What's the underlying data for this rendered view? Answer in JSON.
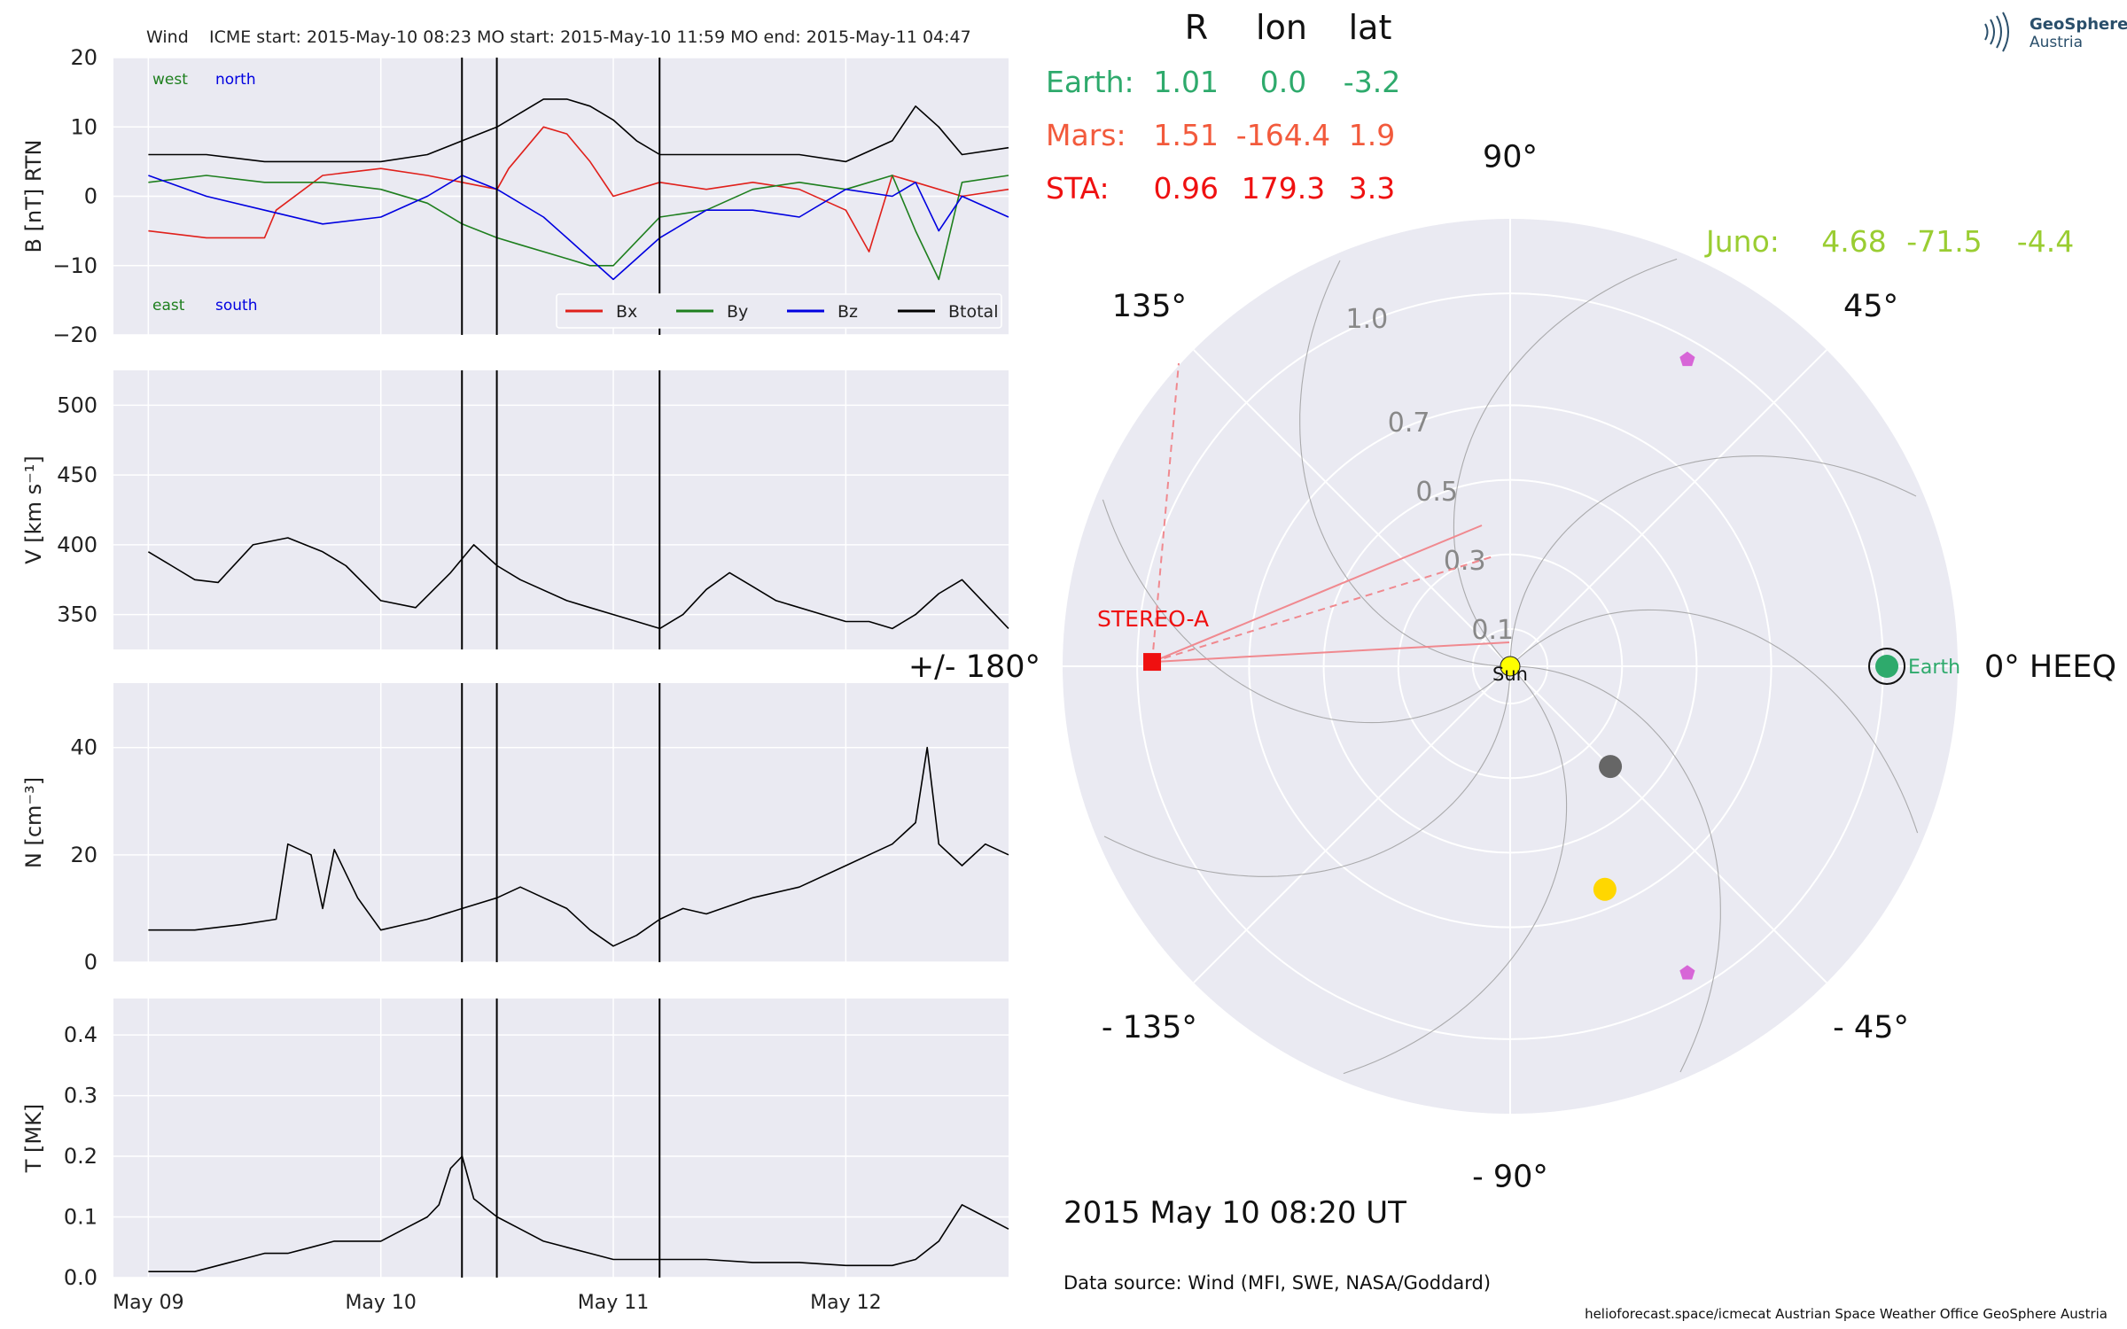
{
  "chart_data": [
    {
      "type": "line",
      "panel": "magnetic-field",
      "instrument": "Wind",
      "title": "ICME start: 2015-May-10 08:23   MO start: 2015-May-10 11:59   MO end: 2015-May-11 04:47",
      "ylabel": "B [nT] RTN",
      "ylim": [
        -20,
        20
      ],
      "yticks": [
        "20",
        "10",
        "0",
        "−10",
        "−20"
      ],
      "xlim": [
        -0.15,
        3.7
      ],
      "xtick_labels": [
        "May 09",
        "May 10",
        "May 11",
        "May 12"
      ],
      "grid": true,
      "legend_placement": "lower right",
      "annotations": {
        "west": "west",
        "north": "north",
        "east": "east",
        "south": "south"
      },
      "event_lines_days": [
        1.349,
        1.499,
        2.199
      ],
      "series": [
        {
          "name": "Bx",
          "color": "#e0201b",
          "x": [
            0,
            0.25,
            0.5,
            0.55,
            0.75,
            1.0,
            1.2,
            1.35,
            1.5,
            1.55,
            1.7,
            1.8,
            1.9,
            2.0,
            2.2,
            2.4,
            2.6,
            2.8,
            3.0,
            3.1,
            3.2,
            3.3,
            3.5,
            3.7
          ],
          "y": [
            -5,
            -6,
            -6,
            -2,
            3,
            4,
            3,
            2,
            1,
            4,
            10,
            9,
            5,
            0,
            2,
            1,
            2,
            1,
            -2,
            -8,
            3,
            2,
            0,
            1
          ]
        },
        {
          "name": "By",
          "color": "#1e7f1e",
          "x": [
            0,
            0.25,
            0.5,
            0.75,
            1.0,
            1.2,
            1.35,
            1.5,
            1.6,
            1.8,
            1.9,
            2.0,
            2.2,
            2.4,
            2.6,
            2.8,
            3.0,
            3.2,
            3.3,
            3.4,
            3.5,
            3.7
          ],
          "y": [
            2,
            3,
            2,
            2,
            1,
            -1,
            -4,
            -6,
            -7,
            -9,
            -10,
            -10,
            -3,
            -2,
            1,
            2,
            1,
            3,
            -5,
            -12,
            2,
            3
          ]
        },
        {
          "name": "Bz",
          "color": "#0000e0",
          "x": [
            0,
            0.25,
            0.5,
            0.75,
            1.0,
            1.2,
            1.35,
            1.5,
            1.7,
            1.8,
            1.9,
            2.0,
            2.1,
            2.2,
            2.4,
            2.6,
            2.8,
            3.0,
            3.2,
            3.3,
            3.4,
            3.5,
            3.7
          ],
          "y": [
            3,
            0,
            -2,
            -4,
            -3,
            0,
            3,
            1,
            -3,
            -6,
            -9,
            -12,
            -9,
            -6,
            -2,
            -2,
            -3,
            1,
            0,
            2,
            -5,
            0,
            -3
          ]
        },
        {
          "name": "Btotal",
          "color": "#000000",
          "x": [
            0,
            0.25,
            0.5,
            0.75,
            1.0,
            1.2,
            1.35,
            1.5,
            1.6,
            1.7,
            1.8,
            1.9,
            2.0,
            2.1,
            2.2,
            2.4,
            2.6,
            2.8,
            3.0,
            3.2,
            3.3,
            3.4,
            3.5,
            3.7
          ],
          "y": [
            6,
            6,
            5,
            5,
            5,
            6,
            8,
            10,
            12,
            14,
            14,
            13,
            11,
            8,
            6,
            6,
            6,
            6,
            5,
            8,
            13,
            10,
            6,
            7
          ]
        }
      ]
    },
    {
      "type": "line",
      "panel": "speed",
      "ylabel": "V [km s⁻¹]",
      "ylim": [
        325,
        525
      ],
      "yticks": [
        "500",
        "450",
        "400",
        "350"
      ],
      "xlim": [
        -0.15,
        3.7
      ],
      "xtick_labels": [
        "May 09",
        "May 10",
        "May 11",
        "May 12"
      ],
      "grid": true,
      "event_lines_days": [
        1.349,
        1.499,
        2.199
      ],
      "series": [
        {
          "name": "V",
          "color": "#000000",
          "x": [
            0,
            0.1,
            0.2,
            0.3,
            0.45,
            0.6,
            0.75,
            0.85,
            1.0,
            1.15,
            1.3,
            1.35,
            1.4,
            1.5,
            1.6,
            1.8,
            1.9,
            2.0,
            2.1,
            2.2,
            2.3,
            2.4,
            2.5,
            2.6,
            2.7,
            2.9,
            3.0,
            3.1,
            3.2,
            3.3,
            3.4,
            3.5,
            3.7
          ],
          "y": [
            395,
            385,
            375,
            373,
            400,
            405,
            395,
            385,
            360,
            355,
            380,
            390,
            400,
            385,
            375,
            360,
            355,
            350,
            345,
            340,
            350,
            368,
            380,
            370,
            360,
            350,
            345,
            345,
            340,
            350,
            365,
            375,
            340
          ]
        }
      ]
    },
    {
      "type": "line",
      "panel": "density",
      "ylabel": "N [cm⁻³]",
      "ylim": [
        0,
        52
      ],
      "yticks": [
        "40",
        "20",
        "0"
      ],
      "xlim": [
        -0.15,
        3.7
      ],
      "xtick_labels": [
        "May 09",
        "May 10",
        "May 11",
        "May 12"
      ],
      "grid": true,
      "event_lines_days": [
        1.349,
        1.499,
        2.199
      ],
      "series": [
        {
          "name": "N",
          "color": "#000000",
          "x": [
            0,
            0.2,
            0.4,
            0.55,
            0.6,
            0.7,
            0.75,
            0.8,
            0.9,
            1.0,
            1.1,
            1.2,
            1.35,
            1.5,
            1.6,
            1.7,
            1.8,
            1.9,
            2.0,
            2.1,
            2.2,
            2.3,
            2.4,
            2.6,
            2.8,
            3.0,
            3.1,
            3.2,
            3.3,
            3.35,
            3.4,
            3.5,
            3.6,
            3.7
          ],
          "y": [
            6,
            6,
            7,
            8,
            22,
            20,
            10,
            21,
            12,
            6,
            7,
            8,
            10,
            12,
            14,
            12,
            10,
            6,
            3,
            5,
            8,
            10,
            9,
            12,
            14,
            18,
            20,
            22,
            26,
            40,
            22,
            18,
            22,
            20
          ]
        }
      ]
    },
    {
      "type": "line",
      "panel": "temperature",
      "ylabel": "T [MK]",
      "ylim": [
        0,
        0.46
      ],
      "yticks": [
        "0.4",
        "0.3",
        "0.2",
        "0.1",
        "0.0"
      ],
      "xlim": [
        -0.15,
        3.7
      ],
      "xtick_labels": [
        "May 09",
        "May 10",
        "May 11",
        "May 12"
      ],
      "grid": true,
      "event_lines_days": [
        1.349,
        1.499,
        2.199
      ],
      "series": [
        {
          "name": "T",
          "color": "#000000",
          "x": [
            0,
            0.2,
            0.3,
            0.4,
            0.5,
            0.6,
            0.7,
            0.8,
            0.9,
            1.0,
            1.1,
            1.2,
            1.25,
            1.3,
            1.35,
            1.4,
            1.5,
            1.6,
            1.7,
            1.8,
            1.9,
            2.0,
            2.2,
            2.4,
            2.6,
            2.8,
            3.0,
            3.1,
            3.2,
            3.3,
            3.4,
            3.5,
            3.6,
            3.7
          ],
          "y": [
            0.01,
            0.01,
            0.02,
            0.03,
            0.04,
            0.04,
            0.05,
            0.06,
            0.06,
            0.06,
            0.08,
            0.1,
            0.12,
            0.18,
            0.2,
            0.13,
            0.1,
            0.08,
            0.06,
            0.05,
            0.04,
            0.03,
            0.03,
            0.03,
            0.025,
            0.025,
            0.02,
            0.02,
            0.02,
            0.03,
            0.06,
            0.12,
            0.1,
            0.08
          ]
        }
      ]
    },
    {
      "type": "scatter",
      "panel": "polar-positions",
      "projection": "polar",
      "angle_labels": [
        "90°",
        "45°",
        "0° HEEQ",
        "- 45°",
        "- 90°",
        "- 135°",
        "+/- 180°",
        "135°"
      ],
      "radial_tick_labels": [
        "0.1",
        "0.3",
        "0.5",
        "0.7",
        "1.0"
      ],
      "radial_ticks_au": [
        0.1,
        0.3,
        0.5,
        0.7,
        1.0
      ],
      "r_max_au": 1.2,
      "grid": true,
      "table_header": {
        "r": "R",
        "lon": "lon",
        "lat": "lat"
      },
      "table_rows": [
        {
          "label": "Earth:",
          "r": "1.01",
          "lon": "0.0",
          "lat": "-3.2",
          "color": "#2eaa6c"
        },
        {
          "label": "Mars:",
          "r": "1.51",
          "lon": "-164.4",
          "lat": "1.9",
          "color": "#f25a3c"
        },
        {
          "label": "STA:",
          "r": "0.96",
          "lon": "179.3",
          "lat": "3.3",
          "color": "#ef1010"
        }
      ],
      "juno": {
        "label": "Juno:",
        "r": "4.68",
        "lon": "-71.5",
        "lat": "-4.4",
        "color": "#9acd32"
      },
      "bodies": [
        {
          "name": "Sun",
          "label": "Sun",
          "r": 0.0,
          "lon": 0,
          "color": "#ffff00",
          "marker": "circle"
        },
        {
          "name": "Earth",
          "label": "Earth",
          "r": 1.01,
          "lon": 0.0,
          "color": "#2eaa6c",
          "marker": "circle-ring"
        },
        {
          "name": "STEREO-A",
          "label": "STEREO-A",
          "r": 0.96,
          "lon": 179.3,
          "color": "#ef1010",
          "marker": "square"
        },
        {
          "name": "grey-spacecraft",
          "r": 0.38,
          "lon": -45,
          "color": "#666666",
          "marker": "circle"
        },
        {
          "name": "yellow-spacecraft",
          "r": 0.65,
          "lon": -67,
          "color": "#ffd700",
          "marker": "circle"
        },
        {
          "name": "violet-upper",
          "r": 0.95,
          "lon": 60,
          "color": "#d766d7",
          "marker": "pentagon"
        },
        {
          "name": "violet-lower",
          "r": 0.95,
          "lon": -60,
          "color": "#d766d7",
          "marker": "pentagon"
        }
      ],
      "date_label": "2015 May 10  08:20 UT",
      "data_source": "Data source: Wind (MFI, SWE, NASA/Goddard)"
    }
  ],
  "header": {
    "logo_title": "GeoSphere",
    "logo_subtitle": "Austria"
  },
  "footer": {
    "credits": "helioforecast.space/icmecat   Austrian Space Weather Office   GeoSphere Austria"
  },
  "colors": {
    "panel_bg": "#eaeaf2",
    "grid": "#ffffff",
    "event_line": "#000000"
  }
}
